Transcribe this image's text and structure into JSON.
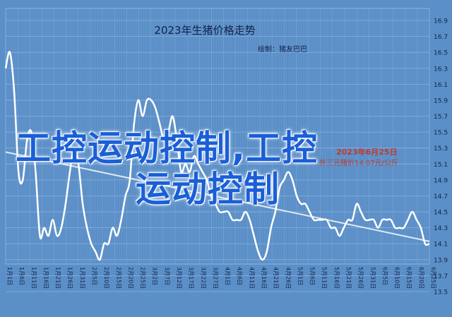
{
  "chart_data": {
    "type": "line",
    "title": "2023年生猪价格走势",
    "subtitle": "绘制：猪友巴巴",
    "y_ticks": [
      "13.5",
      "13.7",
      "13.9",
      "14.1",
      "14.3",
      "14.5",
      "14.7",
      "14.9",
      "15.1",
      "15.3",
      "15.5",
      "15.7",
      "15.9",
      "16.1",
      "16.3",
      "16.5",
      "16.7",
      "16.9"
    ],
    "ylim": [
      13.5,
      16.9
    ],
    "x_ticks": [
      "1月1日",
      "1月6日",
      "1月11日",
      "1月16日",
      "1月21日",
      "1月26日",
      "1月31日",
      "2月5日",
      "2月10日",
      "2月15日",
      "2月20日",
      "2月25日",
      "3月2日",
      "3月7日",
      "3月12日",
      "3月17日",
      "3月22日",
      "3月27日",
      "4月1日",
      "4月6日",
      "4月11日",
      "4月16日",
      "4月21日",
      "4月26日",
      "5月1日",
      "5月6日",
      "5月11日",
      "5月16日",
      "5月21日",
      "5月26日",
      "5月31日",
      "6月5日",
      "6月10日",
      "6月15日",
      "6月20日",
      "6月25日"
    ],
    "grid": true,
    "series": [
      {
        "name": "",
        "color": "#ffffff",
        "values": [
          16.3,
          16.5,
          16.0,
          15.0,
          14.9,
          15.4,
          15.5,
          15.0,
          14.2,
          14.3,
          14.2,
          14.4,
          14.2,
          14.3,
          14.6,
          15.0,
          15.3,
          15.1,
          14.6,
          14.3,
          14.1,
          14.0,
          13.9,
          14.1,
          14.1,
          14.3,
          14.2,
          14.4,
          14.7,
          14.9,
          15.6,
          15.9,
          15.7,
          15.9,
          15.9,
          15.8,
          15.6,
          15.4,
          15.5,
          15.7,
          15.4,
          15.0,
          15.1,
          15.0,
          15.2,
          15.1,
          15.0,
          14.9,
          14.7,
          14.6,
          14.5,
          14.5,
          14.5,
          14.4,
          14.4,
          14.4,
          14.5,
          14.4,
          14.2,
          14.0,
          13.9,
          14.0,
          14.3,
          14.5,
          14.8,
          14.9,
          15.0,
          14.9,
          14.7,
          14.6,
          14.6,
          14.5,
          14.4,
          14.4,
          14.4,
          14.4,
          14.3,
          14.3,
          14.2,
          14.3,
          14.4,
          14.4,
          14.6,
          14.5,
          14.4,
          14.4,
          14.4,
          14.3,
          14.4,
          14.4,
          14.4,
          14.3,
          14.3,
          14.3,
          14.4,
          14.5,
          14.4,
          14.3,
          14.1,
          14.1
        ]
      },
      {
        "name": "",
        "color": "#dfe9f5",
        "values": [
          15.25,
          14.13
        ]
      }
    ]
  },
  "overlay": {
    "line1": "工控运动控制,工控",
    "line2": "运动控制"
  },
  "annotations": {
    "line1": "2023年6月25日",
    "line2": "外三元猪价14.07元/公斤"
  }
}
